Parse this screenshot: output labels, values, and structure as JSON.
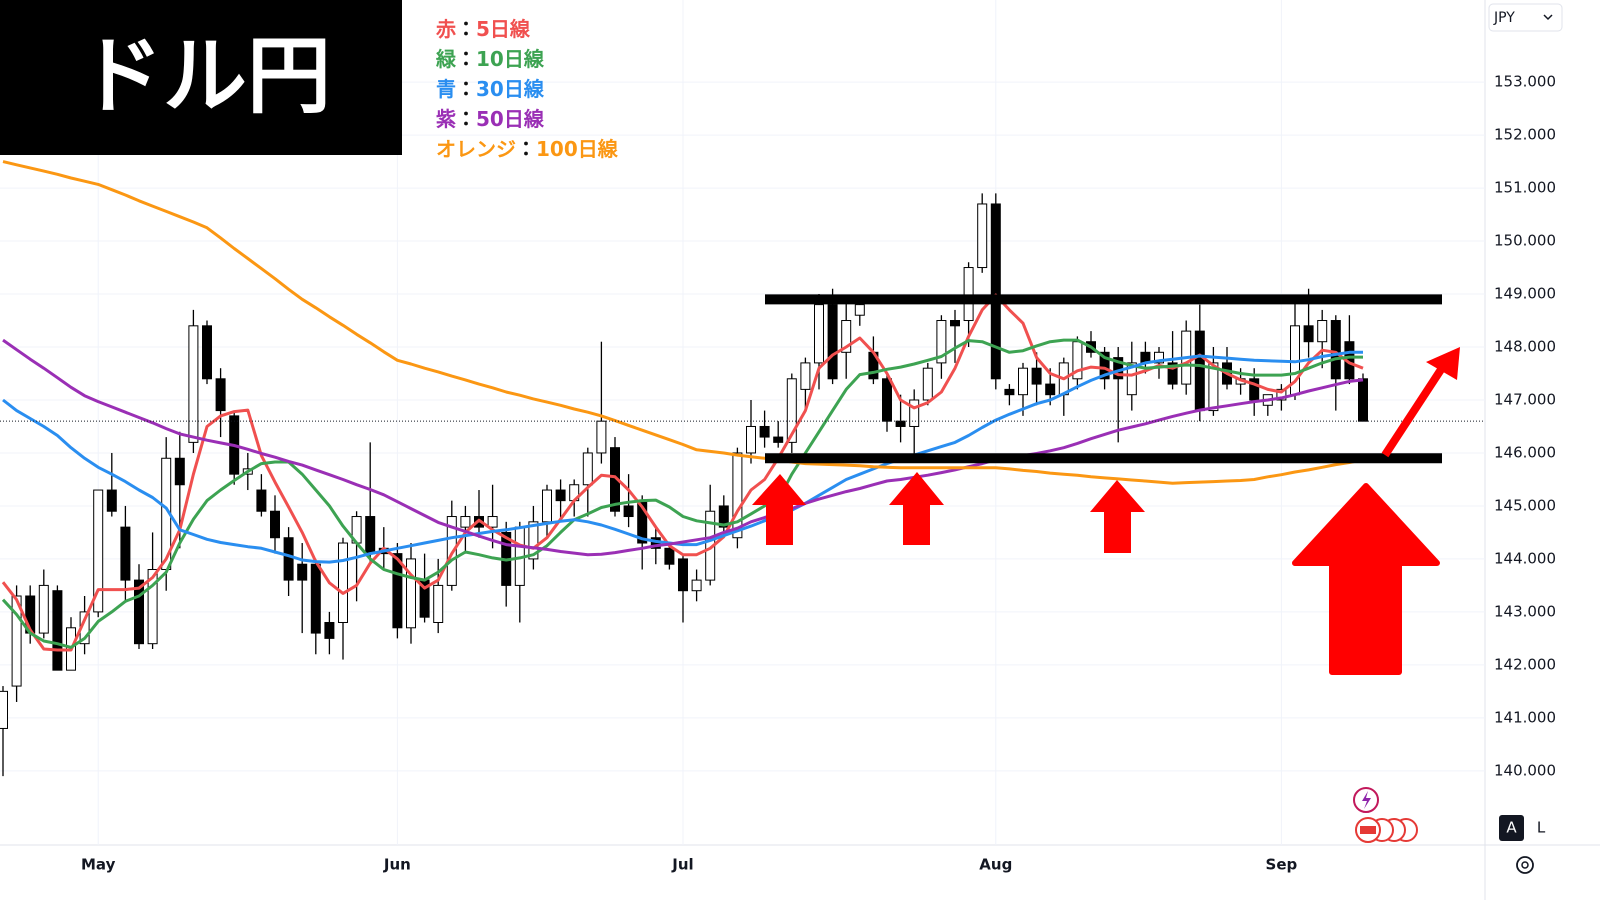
{
  "chart_data": {
    "type": "candlestick",
    "title": "ドル円",
    "currency": "JPY",
    "buttons": [
      "A",
      "L"
    ],
    "legend_separator": "：",
    "categories": [
      null,
      null,
      null,
      null,
      null,
      null,
      null,
      "May",
      null,
      null,
      null,
      null,
      null,
      null,
      null,
      null,
      null,
      null,
      null,
      null,
      null,
      null,
      null,
      null,
      null,
      null,
      null,
      null,
      null,
      "Jun",
      null,
      null,
      null,
      null,
      null,
      null,
      null,
      null,
      null,
      null,
      null,
      null,
      null,
      null,
      null,
      null,
      null,
      null,
      null,
      null,
      "Jul",
      null,
      null,
      null,
      null,
      null,
      null,
      null,
      null,
      null,
      null,
      null,
      null,
      null,
      null,
      null,
      null,
      null,
      null,
      null,
      null,
      null,
      null,
      "Aug",
      null,
      null,
      null,
      null,
      null,
      null,
      null,
      null,
      null,
      null,
      null,
      null,
      null,
      null,
      null,
      null,
      null,
      null,
      null,
      null,
      "Sep",
      null,
      null,
      null,
      null,
      null,
      null
    ],
    "open": [
      140.8,
      141.6,
      143.3,
      142.6,
      143.4,
      141.9,
      142.4,
      143.0,
      145.3,
      144.6,
      143.6,
      142.4,
      143.8,
      145.9,
      146.2,
      148.4,
      147.4,
      146.7,
      145.6,
      145.3,
      144.9,
      144.4,
      143.9,
      143.9,
      142.8,
      142.8,
      144.3,
      144.8,
      144.2,
      144.1,
      142.7,
      143.6,
      142.8,
      143.5,
      144.6,
      144.8,
      144.6,
      144.5,
      143.5,
      144.0,
      144.7,
      145.3,
      145.1,
      145.4,
      146.0,
      146.1,
      145.0,
      145.1,
      144.4,
      144.2,
      144.0,
      143.4,
      143.6,
      145.0,
      144.4,
      146.0,
      146.5,
      146.3,
      146.2,
      147.2,
      147.7,
      148.8,
      147.9,
      148.6,
      147.9,
      147.4,
      146.6,
      146.5,
      147.0,
      147.7,
      148.5,
      148.5,
      149.5,
      150.7,
      147.2,
      147.1,
      147.6,
      147.3,
      147.1,
      147.4,
      148.1,
      147.9,
      147.8,
      147.1,
      147.9,
      147.7,
      147.7,
      147.3,
      148.3,
      146.8,
      147.7,
      147.3,
      147.4,
      146.9,
      147.0,
      147.1,
      148.4,
      148.1,
      148.5,
      148.1,
      147.4
    ],
    "high": [
      141.6,
      143.5,
      143.5,
      143.8,
      143.5,
      142.9,
      143.3,
      145.3,
      146.0,
      145.0,
      143.9,
      144.5,
      146.3,
      146.4,
      148.7,
      148.5,
      147.6,
      146.8,
      146.0,
      145.6,
      145.2,
      144.6,
      144.3,
      144.0,
      143.0,
      144.4,
      144.9,
      146.2,
      144.6,
      144.3,
      144.3,
      144.1,
      144.0,
      145.1,
      145.0,
      145.3,
      145.4,
      144.7,
      144.7,
      145.0,
      145.4,
      145.5,
      145.5,
      146.1,
      148.1,
      146.3,
      145.6,
      145.2,
      144.6,
      144.3,
      144.1,
      143.8,
      145.4,
      145.2,
      146.1,
      147.0,
      146.8,
      146.6,
      147.5,
      147.8,
      149.0,
      149.1,
      148.9,
      148.9,
      148.2,
      147.5,
      147.1,
      147.2,
      147.7,
      148.6,
      148.7,
      149.6,
      150.9,
      150.9,
      147.3,
      147.7,
      147.9,
      147.6,
      147.8,
      148.2,
      148.3,
      148.0,
      148.0,
      148.1,
      148.1,
      148.0,
      148.3,
      148.5,
      148.8,
      148.0,
      148.0,
      147.6,
      147.6,
      147.1,
      147.3,
      148.9,
      149.1,
      148.7,
      148.6,
      148.6,
      147.5
    ],
    "low": [
      139.9,
      141.3,
      142.4,
      142.5,
      141.9,
      141.9,
      142.2,
      142.9,
      144.8,
      143.2,
      142.3,
      142.3,
      143.4,
      144.2,
      146.0,
      147.3,
      146.3,
      145.4,
      145.3,
      144.8,
      144.1,
      143.3,
      142.6,
      142.2,
      142.2,
      142.1,
      143.2,
      143.9,
      143.8,
      142.5,
      142.4,
      142.8,
      142.6,
      143.4,
      144.1,
      144.4,
      144.2,
      143.1,
      142.8,
      143.8,
      144.4,
      144.7,
      144.8,
      144.8,
      145.8,
      144.8,
      144.6,
      143.8,
      143.9,
      143.8,
      142.8,
      143.2,
      143.5,
      144.4,
      144.2,
      145.8,
      146.1,
      146.1,
      146.0,
      146.8,
      147.2,
      147.3,
      147.4,
      148.4,
      147.3,
      146.4,
      146.2,
      145.9,
      146.9,
      147.4,
      147.7,
      148.0,
      149.4,
      147.2,
      146.9,
      146.7,
      146.9,
      146.9,
      146.7,
      147.2,
      147.8,
      147.2,
      146.2,
      146.8,
      147.5,
      147.4,
      147.2,
      147.1,
      146.6,
      146.7,
      147.2,
      147.1,
      146.7,
      146.7,
      146.8,
      147.0,
      147.8,
      147.6,
      146.8,
      147.3,
      146.6
    ],
    "close": [
      141.5,
      143.3,
      142.6,
      143.5,
      141.9,
      142.7,
      143.0,
      145.3,
      144.9,
      143.6,
      142.4,
      143.8,
      145.9,
      145.4,
      148.4,
      147.4,
      146.8,
      145.6,
      145.7,
      144.9,
      144.4,
      143.6,
      143.6,
      142.6,
      142.5,
      144.3,
      144.8,
      144.1,
      144.1,
      142.7,
      144.0,
      142.9,
      143.5,
      144.8,
      144.8,
      144.6,
      144.8,
      143.5,
      144.6,
      144.7,
      145.3,
      145.1,
      145.4,
      146.0,
      146.6,
      144.9,
      144.8,
      144.3,
      144.2,
      143.9,
      143.4,
      143.6,
      144.9,
      144.6,
      146.0,
      146.5,
      146.3,
      146.2,
      147.4,
      147.7,
      148.8,
      147.4,
      148.5,
      148.8,
      147.4,
      146.6,
      146.5,
      147.0,
      147.6,
      148.5,
      148.4,
      149.5,
      150.7,
      147.4,
      147.1,
      147.6,
      147.3,
      147.1,
      147.7,
      148.1,
      147.9,
      147.4,
      147.4,
      147.7,
      147.7,
      147.9,
      147.3,
      148.3,
      146.8,
      147.7,
      147.3,
      147.4,
      147.0,
      147.1,
      147.2,
      148.4,
      148.1,
      148.5,
      147.4,
      147.4,
      146.6
    ],
    "series": [
      {
        "name": "5日線",
        "color_word": "赤",
        "color": "#f0504f",
        "values": [
          143.56,
          143.23,
          142.66,
          142.3,
          142.28,
          142.28,
          142.85,
          143.42,
          143.42,
          143.42,
          143.45,
          143.65,
          144.0,
          144.55,
          145.6,
          146.5,
          146.7,
          146.78,
          146.81,
          145.95,
          145.45,
          144.98,
          144.5,
          143.95,
          143.55,
          143.35,
          143.5,
          143.92,
          144.2,
          144.0,
          143.7,
          143.45,
          143.6,
          144.1,
          144.5,
          144.73,
          144.55,
          144.4,
          144.26,
          144.2,
          144.4,
          144.75,
          145.1,
          145.35,
          145.58,
          145.55,
          145.3,
          144.98,
          144.6,
          144.25,
          144.08,
          144.08,
          144.2,
          144.42,
          144.9,
          145.3,
          145.5,
          145.9,
          146.35,
          146.8,
          147.6,
          147.85,
          148.0,
          148.17,
          147.9,
          147.5,
          147.0,
          146.85,
          146.95,
          147.15,
          147.6,
          148.2,
          148.7,
          148.98,
          148.7,
          148.45,
          147.8,
          147.5,
          147.4,
          147.55,
          147.62,
          147.6,
          147.48,
          147.47,
          147.55,
          147.65,
          147.6,
          147.7,
          147.85,
          147.65,
          147.5,
          147.38,
          147.3,
          147.2,
          147.15,
          147.35,
          147.7,
          147.94,
          147.9,
          147.7,
          147.6
        ]
      },
      {
        "name": "10日線",
        "color_word": "緑",
        "color": "#3da352",
        "values": [
          143.23,
          142.95,
          142.6,
          142.45,
          142.4,
          142.33,
          142.5,
          142.82,
          143.0,
          143.2,
          143.3,
          143.5,
          143.75,
          144.3,
          144.75,
          145.1,
          145.3,
          145.48,
          145.65,
          145.8,
          145.83,
          145.83,
          145.6,
          145.3,
          145.0,
          144.62,
          144.3,
          144.0,
          143.8,
          143.72,
          143.65,
          143.6,
          143.75,
          143.98,
          144.13,
          144.08,
          144.02,
          143.98,
          144.02,
          144.08,
          144.25,
          144.5,
          144.74,
          144.85,
          144.97,
          145.03,
          145.07,
          145.1,
          145.11,
          144.98,
          144.8,
          144.72,
          144.68,
          144.64,
          144.7,
          144.85,
          145.0,
          145.11,
          145.6,
          146.0,
          146.4,
          146.8,
          147.2,
          147.48,
          147.52,
          147.58,
          147.62,
          147.68,
          147.75,
          147.82,
          147.98,
          148.12,
          148.1,
          148.0,
          147.9,
          147.93,
          148.02,
          148.1,
          148.13,
          148.13,
          148.0,
          147.8,
          147.72,
          147.65,
          147.6,
          147.62,
          147.64,
          147.66,
          147.65,
          147.6,
          147.55,
          147.5,
          147.47,
          147.47,
          147.47,
          147.5,
          147.6,
          147.7,
          147.78,
          147.81,
          147.81
        ]
      },
      {
        "name": "30日線",
        "color_word": "青",
        "color": "#2a8ef0",
        "values": [
          147.0,
          146.8,
          146.65,
          146.5,
          146.33,
          146.1,
          145.9,
          145.73,
          145.6,
          145.46,
          145.3,
          145.16,
          144.96,
          144.55,
          144.46,
          144.37,
          144.31,
          144.27,
          144.23,
          144.2,
          144.13,
          144.06,
          143.98,
          143.95,
          143.94,
          143.97,
          144.03,
          144.1,
          144.15,
          144.2,
          144.25,
          144.3,
          144.35,
          144.4,
          144.44,
          144.48,
          144.52,
          144.55,
          144.59,
          144.63,
          144.67,
          144.71,
          144.74,
          144.7,
          144.64,
          144.56,
          144.47,
          144.38,
          144.33,
          144.3,
          144.27,
          144.27,
          144.35,
          144.44,
          144.53,
          144.62,
          144.72,
          144.82,
          144.92,
          145.05,
          145.2,
          145.35,
          145.5,
          145.6,
          145.7,
          145.8,
          145.88,
          145.96,
          146.04,
          146.12,
          146.2,
          146.33,
          146.48,
          146.62,
          146.73,
          146.83,
          146.93,
          147.0,
          147.12,
          147.25,
          147.37,
          147.47,
          147.55,
          147.62,
          147.7,
          147.74,
          147.77,
          147.8,
          147.83,
          147.81,
          147.79,
          147.77,
          147.75,
          147.74,
          147.73,
          147.72,
          147.76,
          147.82,
          147.86,
          147.9,
          147.9
        ]
      },
      {
        "name": "50日線",
        "color_word": "紫",
        "color": "#9a2fb5",
        "values": [
          148.13,
          147.95,
          147.77,
          147.6,
          147.42,
          147.24,
          147.08,
          146.97,
          146.87,
          146.77,
          146.67,
          146.57,
          146.46,
          146.36,
          146.3,
          146.24,
          146.19,
          146.14,
          146.07,
          145.99,
          145.92,
          145.84,
          145.77,
          145.68,
          145.59,
          145.5,
          145.4,
          145.31,
          145.21,
          145.08,
          144.95,
          144.82,
          144.69,
          144.6,
          144.52,
          144.43,
          144.35,
          144.27,
          144.24,
          144.21,
          144.18,
          144.14,
          144.11,
          144.08,
          144.09,
          144.12,
          144.16,
          144.2,
          144.25,
          144.28,
          144.32,
          144.36,
          144.4,
          144.5,
          144.58,
          144.7,
          144.78,
          144.87,
          144.95,
          145.05,
          145.13,
          145.2,
          145.27,
          145.33,
          145.4,
          145.47,
          145.5,
          145.54,
          145.58,
          145.63,
          145.68,
          145.74,
          145.8,
          145.87,
          145.9,
          145.95,
          145.99,
          146.04,
          146.1,
          146.18,
          146.27,
          146.35,
          146.43,
          146.49,
          146.55,
          146.62,
          146.69,
          146.75,
          146.81,
          146.85,
          146.89,
          146.93,
          146.97,
          147.0,
          147.04,
          147.1,
          147.17,
          147.23,
          147.29,
          147.35,
          147.38
        ]
      },
      {
        "name": "100日線",
        "color_word": "オレンジ",
        "color": "#fb9713",
        "values": [
          151.5,
          151.44,
          151.38,
          151.32,
          151.26,
          151.19,
          151.13,
          151.07,
          150.97,
          150.87,
          150.76,
          150.66,
          150.56,
          150.46,
          150.36,
          150.25,
          150.06,
          149.86,
          149.67,
          149.48,
          149.29,
          149.09,
          148.9,
          148.74,
          148.57,
          148.41,
          148.24,
          148.08,
          147.91,
          147.75,
          147.68,
          147.6,
          147.53,
          147.45,
          147.38,
          147.3,
          147.23,
          147.15,
          147.09,
          147.02,
          146.96,
          146.9,
          146.83,
          146.77,
          146.7,
          146.61,
          146.52,
          146.43,
          146.34,
          146.25,
          146.16,
          146.06,
          146.03,
          146.0,
          145.96,
          145.93,
          145.9,
          145.87,
          145.83,
          145.8,
          145.79,
          145.78,
          145.77,
          145.76,
          145.74,
          145.73,
          145.72,
          145.72,
          145.72,
          145.72,
          145.72,
          145.72,
          145.72,
          145.72,
          145.7,
          145.67,
          145.65,
          145.62,
          145.6,
          145.58,
          145.55,
          145.53,
          145.51,
          145.49,
          145.47,
          145.45,
          145.43,
          145.44,
          145.45,
          145.46,
          145.47,
          145.48,
          145.5,
          145.55,
          145.59,
          145.64,
          145.68,
          145.73,
          145.78,
          145.82,
          145.87
        ]
      }
    ],
    "levels": [
      148.9,
      145.9
    ],
    "ylim": [
      138.6,
      154.55
    ],
    "yticks": [
      {
        "value": 140,
        "label": "140.000"
      },
      {
        "value": 141,
        "label": "141.000"
      },
      {
        "value": 142,
        "label": "142.000"
      },
      {
        "value": 143,
        "label": "143.000"
      },
      {
        "value": 144,
        "label": "144.000"
      },
      {
        "value": 145,
        "label": "145.000"
      },
      {
        "value": 146,
        "label": "146.000"
      },
      {
        "value": 147,
        "label": "147.000"
      },
      {
        "value": 148,
        "label": "148.000"
      },
      {
        "value": 149,
        "label": "149.000"
      },
      {
        "value": 150,
        "label": "150.000"
      },
      {
        "value": 151,
        "label": "151.000"
      },
      {
        "value": 152,
        "label": "152.000"
      },
      {
        "value": 153,
        "label": "153.000"
      }
    ],
    "grid": true
  }
}
